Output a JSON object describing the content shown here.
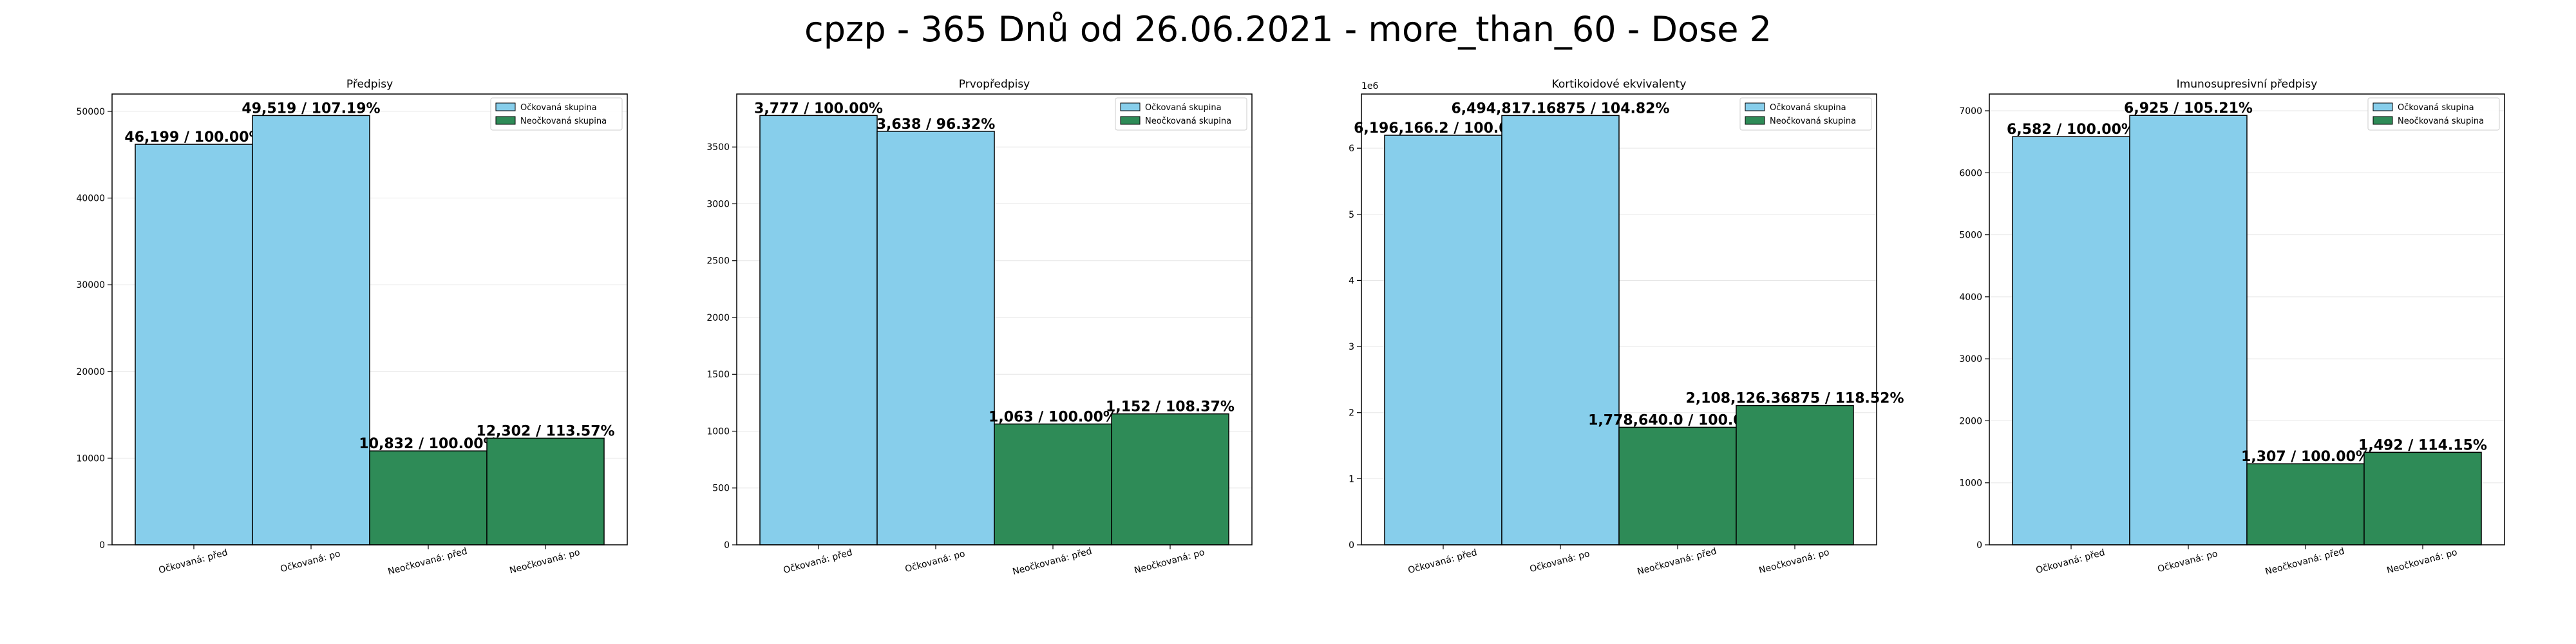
{
  "title": "cpzp - 365 Dnů od 26.06.2021 - more_than_60 - Dose 2",
  "colors": {
    "vaccinated": "#87CEEB",
    "unvaccinated": "#2E8B57",
    "grid": "#e6e6e6"
  },
  "chart_data": [
    {
      "type": "bar",
      "title": "Předpisy",
      "categories": [
        "Očkovaná: před",
        "Očkovaná: po",
        "Neočkovaná: před",
        "Neočkovaná: po"
      ],
      "values": [
        46199,
        49519,
        10832,
        12302
      ],
      "group": [
        "vaccinated",
        "vaccinated",
        "unvaccinated",
        "unvaccinated"
      ],
      "labels": [
        "46,199 / 100.00%",
        "49,519 / 107.19%",
        "10,832 / 100.00%",
        "12,302 / 113.57%"
      ],
      "ylim": [
        0,
        52000
      ],
      "yticks": [
        0,
        10000,
        20000,
        30000,
        40000,
        50000
      ],
      "ytick_labels": [
        "0",
        "10000",
        "20000",
        "30000",
        "40000",
        "50000"
      ],
      "offset_text": "",
      "legend": [
        "Očkovaná skupina",
        "Neočkovaná skupina"
      ],
      "legend_position": "top-right",
      "grid": "y"
    },
    {
      "type": "bar",
      "title": "Prvopředpisy",
      "categories": [
        "Očkovaná: před",
        "Očkovaná: po",
        "Neočkovaná: před",
        "Neočkovaná: po"
      ],
      "values": [
        3777,
        3638,
        1063,
        1152
      ],
      "group": [
        "vaccinated",
        "vaccinated",
        "unvaccinated",
        "unvaccinated"
      ],
      "labels": [
        "3,777 / 100.00%",
        "3,638 / 96.32%",
        "1,063 / 100.00%",
        "1,152 / 108.37%"
      ],
      "ylim": [
        0,
        3966
      ],
      "yticks": [
        0,
        500,
        1000,
        1500,
        2000,
        2500,
        3000,
        3500
      ],
      "ytick_labels": [
        "0",
        "500",
        "1000",
        "1500",
        "2000",
        "2500",
        "3000",
        "3500"
      ],
      "offset_text": "",
      "legend": [
        "Očkovaná skupina",
        "Neočkovaná skupina"
      ],
      "legend_position": "top-right",
      "grid": "y"
    },
    {
      "type": "bar",
      "title": "Kortikoidové ekvivalenty",
      "categories": [
        "Očkovaná: před",
        "Očkovaná: po",
        "Neočkovaná: před",
        "Neočkovaná: po"
      ],
      "values": [
        6196166.2,
        6494817.16875,
        1778640.0,
        2108126.36875
      ],
      "group": [
        "vaccinated",
        "vaccinated",
        "unvaccinated",
        "unvaccinated"
      ],
      "labels": [
        "6,196,166.2 / 100.00%",
        "6,494,817.16875 / 104.82%",
        "1,778,640.0 / 100.00%",
        "2,108,126.36875 / 118.52%"
      ],
      "ylim": [
        0,
        6820000
      ],
      "yticks": [
        0,
        1000000,
        2000000,
        3000000,
        4000000,
        5000000,
        6000000
      ],
      "ytick_labels": [
        "0",
        "1",
        "2",
        "3",
        "4",
        "5",
        "6"
      ],
      "offset_text": "1e6",
      "legend": [
        "Očkovaná skupina",
        "Neočkovaná skupina"
      ],
      "legend_position": "top-right",
      "grid": "y"
    },
    {
      "type": "bar",
      "title": "Imunosupresivní předpisy",
      "categories": [
        "Očkovaná: před",
        "Očkovaná: po",
        "Neočkovaná: před",
        "Neočkovaná: po"
      ],
      "values": [
        6582,
        6925,
        1307,
        1492
      ],
      "group": [
        "vaccinated",
        "vaccinated",
        "unvaccinated",
        "unvaccinated"
      ],
      "labels": [
        "6,582 / 100.00%",
        "6,925 / 105.21%",
        "1,307 / 100.00%",
        "1,492 / 114.15%"
      ],
      "ylim": [
        0,
        7270
      ],
      "yticks": [
        0,
        1000,
        2000,
        3000,
        4000,
        5000,
        6000,
        7000
      ],
      "ytick_labels": [
        "0",
        "1000",
        "2000",
        "3000",
        "4000",
        "5000",
        "6000",
        "7000"
      ],
      "offset_text": "",
      "legend": [
        "Očkovaná skupina",
        "Neočkovaná skupina"
      ],
      "legend_position": "top-right",
      "grid": "y"
    }
  ]
}
